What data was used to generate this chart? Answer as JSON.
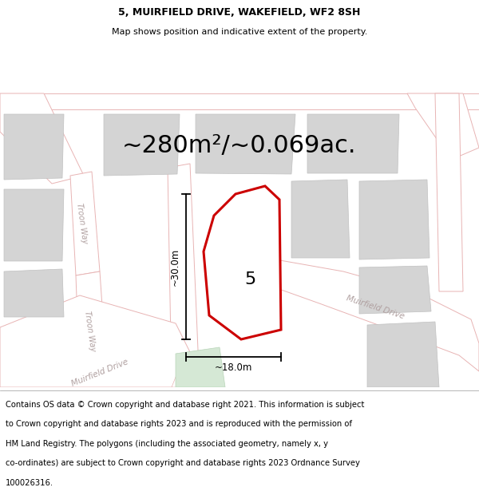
{
  "title_line1": "5, MUIRFIELD DRIVE, WAKEFIELD, WF2 8SH",
  "title_line2": "Map shows position and indicative extent of the property.",
  "area_text": "~280m²/~0.069ac.",
  "property_number": "5",
  "dim_vertical": "~30.0m",
  "dim_horizontal": "~18.0m",
  "map_bg": "#eeeded",
  "road_fill": "#ffffff",
  "road_color": "#e8b4b4",
  "building_fill": "#d4d4d4",
  "building_edge": "#c0c0c0",
  "plot_fill": "#ffffff",
  "plot_edge": "#cc0000",
  "green_fill": "#d5e8d5",
  "green_edge": "#b8d4b8",
  "footer_lines": [
    "Contains OS data © Crown copyright and database right 2021. This information is subject",
    "to Crown copyright and database rights 2023 and is reproduced with the permission of",
    "HM Land Registry. The polygons (including the associated geometry, namely x, y",
    "co-ordinates) are subject to Crown copyright and database rights 2023 Ordnance Survey",
    "100026316."
  ],
  "road_label_troon1": "Troon Way",
  "road_label_troon2": "Troon Way",
  "road_label_muir_bot": "Muirfield Drive",
  "road_label_muir_right": "Muirfield Drive",
  "title_fontsize": 9,
  "subtitle_fontsize": 8,
  "area_fontsize": 22,
  "footer_fontsize": 7.2,
  "dim_fontsize": 8.5,
  "num_fontsize": 16
}
